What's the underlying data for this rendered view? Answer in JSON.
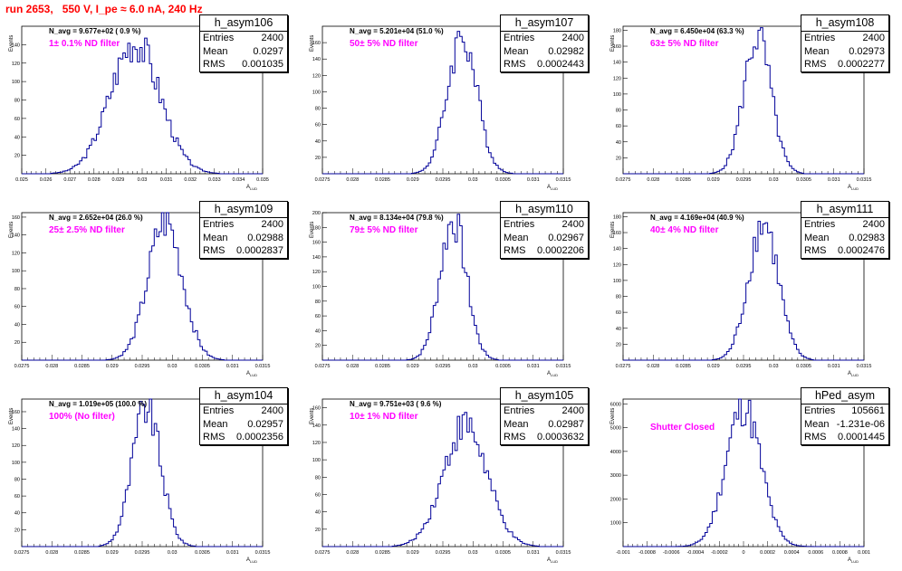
{
  "header": {
    "title": "run 2653,   550 V, I_pe ≈ 6.0 nA, 240 Hz"
  },
  "colors": {
    "title": "#ff0000",
    "filter_label": "#ff00ff",
    "histogram": "#000099",
    "axis": "#000000"
  },
  "labels": {
    "ylabel": "Events",
    "xlabel": "A",
    "xlabel_sub": "LUD"
  },
  "chart_data": [
    {
      "type": "bar",
      "hist_name": "h_asym106",
      "navg": "N_avg = 9.677e+02 ( 0.9 %)",
      "filter": "1± 0.1% ND filter",
      "entries": "2400",
      "mean": "0.0297",
      "rms": "0.001035",
      "xlim": [
        0.025,
        0.035
      ],
      "ylim": [
        0,
        160
      ],
      "xticks": [
        "0.025",
        "0.026",
        "0.027",
        "0.028",
        "0.029",
        "0.03",
        "0.031",
        "0.032",
        "0.033",
        "0.034",
        "0.035"
      ],
      "yticks": [
        "20",
        "40",
        "60",
        "80",
        "100",
        "120",
        "140"
      ],
      "peak_y": 143,
      "center": 0.0297,
      "sigma": 0.001035
    },
    {
      "type": "bar",
      "hist_name": "h_asym107",
      "navg": "N_avg = 5.201e+04 (51.0 %)",
      "filter": "50± 5% ND filter",
      "entries": "2400",
      "mean": "0.02982",
      "rms": "0.0002443",
      "xlim": [
        0.0275,
        0.0315
      ],
      "ylim": [
        0,
        180
      ],
      "xticks": [
        "0.0275",
        "0.028",
        "0.0285",
        "0.029",
        "0.0295",
        "0.03",
        "0.0305",
        "0.031",
        "0.0315"
      ],
      "yticks": [
        "20",
        "40",
        "60",
        "80",
        "100",
        "120",
        "140",
        "160"
      ],
      "peak_y": 168,
      "center": 0.02982,
      "sigma": 0.0002443
    },
    {
      "type": "bar",
      "hist_name": "h_asym108",
      "navg": "N_avg = 6.450e+04 (63.3 %)",
      "filter": "63± 5% ND filter",
      "entries": "2400",
      "mean": "0.02973",
      "rms": "0.0002277",
      "xlim": [
        0.0275,
        0.0315
      ],
      "ylim": [
        0,
        185
      ],
      "xticks": [
        "0.0275",
        "0.028",
        "0.0285",
        "0.029",
        "0.0295",
        "0.03",
        "0.0305",
        "0.031",
        "0.0315"
      ],
      "yticks": [
        "20",
        "40",
        "60",
        "80",
        "100",
        "120",
        "140",
        "160",
        "180"
      ],
      "peak_y": 172,
      "center": 0.02973,
      "sigma": 0.0002277
    },
    {
      "type": "bar",
      "hist_name": "h_asym109",
      "navg": "N_avg = 2.652e+04 (26.0 %)",
      "filter": "25± 2.5% ND filter",
      "entries": "2400",
      "mean": "0.02988",
      "rms": "0.0002837",
      "xlim": [
        0.0275,
        0.0315
      ],
      "ylim": [
        0,
        165
      ],
      "xticks": [
        "0.0275",
        "0.028",
        "0.0285",
        "0.029",
        "0.0295",
        "0.03",
        "0.0305",
        "0.031",
        "0.0315"
      ],
      "yticks": [
        "20",
        "40",
        "60",
        "80",
        "100",
        "120",
        "140",
        "160"
      ],
      "peak_y": 155,
      "center": 0.02988,
      "sigma": 0.0002837
    },
    {
      "type": "bar",
      "hist_name": "h_asym110",
      "navg": "N_avg = 8.134e+04 (79.8 %)",
      "filter": "79± 5% ND filter",
      "entries": "2400",
      "mean": "0.02967",
      "rms": "0.0002206",
      "xlim": [
        0.0275,
        0.0315
      ],
      "ylim": [
        0,
        200
      ],
      "xticks": [
        "0.0275",
        "0.028",
        "0.0285",
        "0.029",
        "0.0295",
        "0.03",
        "0.0305",
        "0.031",
        "0.0315"
      ],
      "yticks": [
        "20",
        "40",
        "60",
        "80",
        "100",
        "120",
        "140",
        "160",
        "180",
        "200"
      ],
      "peak_y": 190,
      "center": 0.02967,
      "sigma": 0.0002206
    },
    {
      "type": "bar",
      "hist_name": "h_asym111",
      "navg": "N_avg = 4.169e+04 (40.9 %)",
      "filter": "40± 4% ND filter",
      "entries": "2400",
      "mean": "0.02983",
      "rms": "0.0002476",
      "xlim": [
        0.0275,
        0.0315
      ],
      "ylim": [
        0,
        185
      ],
      "xticks": [
        "0.0275",
        "0.028",
        "0.0285",
        "0.029",
        "0.0295",
        "0.03",
        "0.0305",
        "0.031",
        "0.0315"
      ],
      "yticks": [
        "20",
        "40",
        "60",
        "80",
        "100",
        "120",
        "140",
        "160",
        "180"
      ],
      "peak_y": 173,
      "center": 0.02983,
      "sigma": 0.0002476
    },
    {
      "type": "bar",
      "hist_name": "h_asym104",
      "navg": "N_avg = 1.019e+05 (100.0 %)",
      "filter": "100% (No filter)",
      "entries": "2400",
      "mean": "0.02957",
      "rms": "0.0002356",
      "xlim": [
        0.0275,
        0.0315
      ],
      "ylim": [
        0,
        175
      ],
      "xticks": [
        "0.0275",
        "0.028",
        "0.0285",
        "0.029",
        "0.0295",
        "0.03",
        "0.0305",
        "0.031",
        "0.0315"
      ],
      "yticks": [
        "20",
        "40",
        "60",
        "80",
        "100",
        "120",
        "140",
        "160"
      ],
      "peak_y": 165,
      "center": 0.02957,
      "sigma": 0.0002356
    },
    {
      "type": "bar",
      "hist_name": "h_asym105",
      "navg": "N_avg = 9.751e+03 ( 9.6 %)",
      "filter": "10± 1% ND filter",
      "entries": "2400",
      "mean": "0.02987",
      "rms": "0.0003632",
      "xlim": [
        0.0275,
        0.0315
      ],
      "ylim": [
        0,
        170
      ],
      "xticks": [
        "0.0275",
        "0.028",
        "0.0285",
        "0.029",
        "0.0295",
        "0.03",
        "0.0305",
        "0.031",
        "0.0315"
      ],
      "yticks": [
        "20",
        "40",
        "60",
        "80",
        "100",
        "120",
        "140",
        "160"
      ],
      "peak_y": 140,
      "center": 0.02987,
      "sigma": 0.0003632
    },
    {
      "type": "bar",
      "hist_name": "hPed_asym",
      "navg": "",
      "filter": "Shutter Closed",
      "entries": "105661",
      "mean": "-1.231e-06",
      "rms": "0.0001445",
      "xlim": [
        -0.001,
        0.001
      ],
      "ylim": [
        0,
        6200
      ],
      "xticks": [
        "-0.001",
        "-0.0008",
        "-0.0006",
        "-0.0004",
        "-0.0002",
        "0",
        "0.0002",
        "0.0004",
        "0.0006",
        "0.0008",
        "0.001"
      ],
      "yticks": [
        "1000",
        "2000",
        "3000",
        "4000",
        "5000",
        "6000"
      ],
      "peak_y": 5900,
      "center": -1.23e-06,
      "sigma": 0.0001445
    }
  ]
}
